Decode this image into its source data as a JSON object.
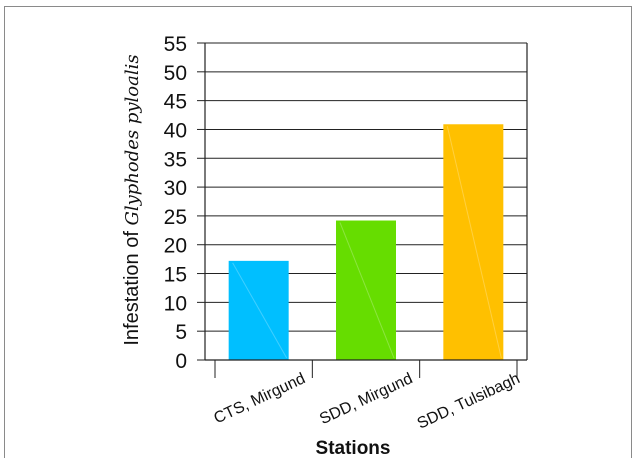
{
  "chart_data": {
    "type": "bar",
    "categories": [
      "CTS, Mirgund",
      "SDD, Mirgund",
      "SDD, Tulsibagh"
    ],
    "values": [
      17.2,
      24.2,
      40.9
    ],
    "colors": [
      "#00bfff",
      "#66dd00",
      "#ffc000"
    ],
    "xlabel": "Stations",
    "ylabel_prefix": "Infestation of",
    "ylabel_species": "Glyphodes pyloalis",
    "ylim": [
      0,
      55
    ],
    "yticks": [
      0,
      5,
      10,
      15,
      20,
      25,
      30,
      35,
      40,
      45,
      50,
      55
    ],
    "grid": true,
    "legend": "none"
  }
}
